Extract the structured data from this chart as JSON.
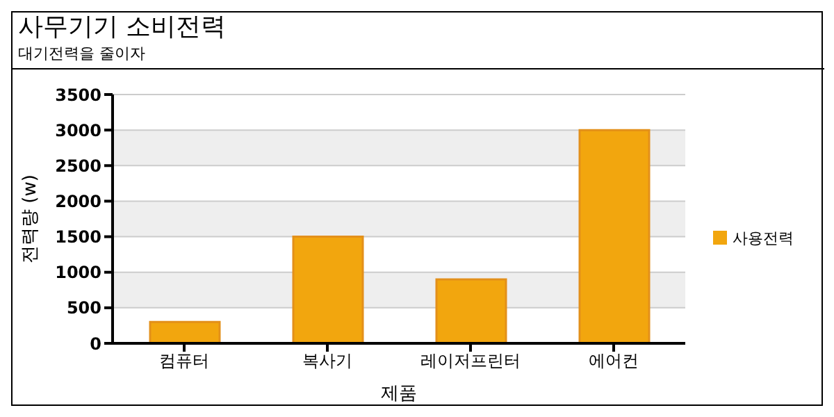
{
  "chart_data": {
    "type": "bar",
    "title": "사무기기 소비전력",
    "subtitle": "대기전력을 줄이자",
    "xlabel": "제품",
    "ylabel": "전력량 (w)",
    "categories": [
      "컴퓨터",
      "복사기",
      "레이저프린터",
      "에어컨"
    ],
    "series": [
      {
        "name": "사용전력",
        "color": "#f2a60e",
        "values": [
          300,
          1500,
          900,
          3000
        ]
      }
    ],
    "ylim": [
      0,
      3500
    ],
    "yticks": [
      0,
      500,
      1000,
      1500,
      2000,
      2500,
      3000,
      3500
    ],
    "grid": "y",
    "legend": "right"
  }
}
